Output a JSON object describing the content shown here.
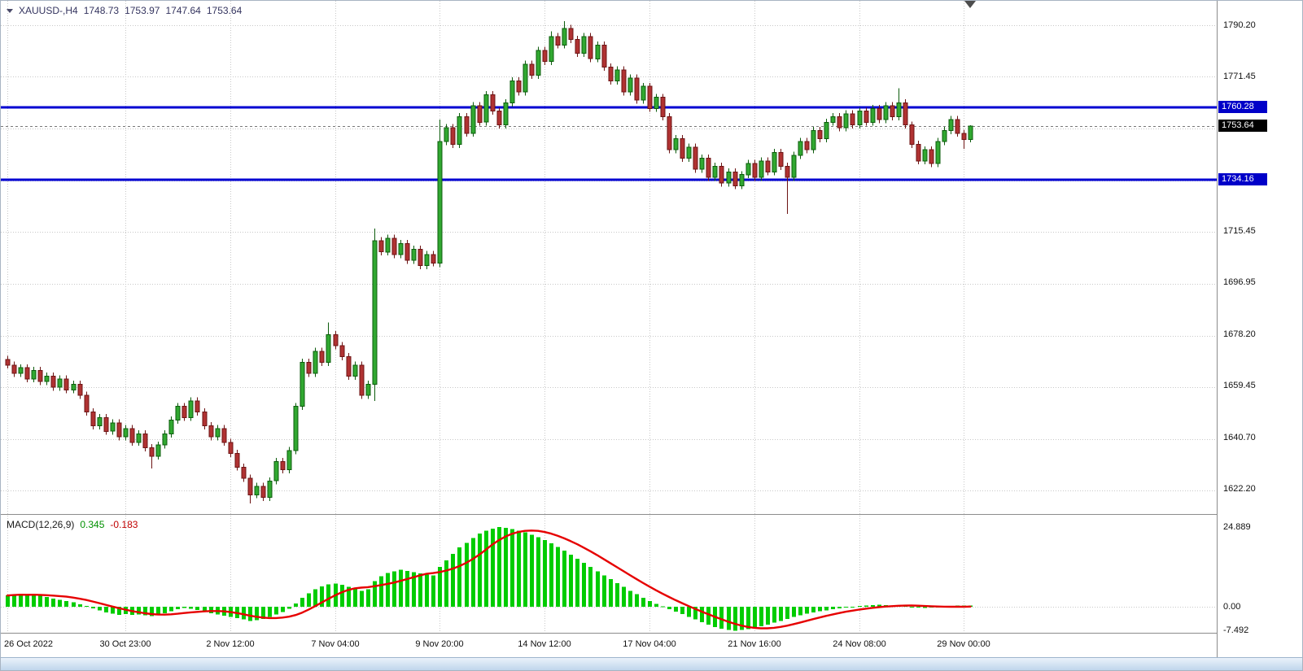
{
  "header": {
    "symbol_title": "XAUUSD-,H4",
    "open": "1748.73",
    "high": "1753.97",
    "low": "1747.64",
    "close": "1753.64"
  },
  "macd_header": {
    "label": "MACD(12,26,9)",
    "main_value": "0.345",
    "signal_value": "-0.183"
  },
  "price_axis": {
    "labels": [
      {
        "text": "1790.20",
        "value": 1790.2
      },
      {
        "text": "1771.45",
        "value": 1771.45
      },
      {
        "text": "1715.45",
        "value": 1715.45
      },
      {
        "text": "1696.95",
        "value": 1696.95
      },
      {
        "text": "1678.20",
        "value": 1678.2
      },
      {
        "text": "1659.45",
        "value": 1659.45
      },
      {
        "text": "1640.70",
        "value": 1640.7
      },
      {
        "text": "1622.20",
        "value": 1622.2
      }
    ],
    "badges": [
      {
        "text": "1760.28",
        "value": 1760.28,
        "kind": "level"
      },
      {
        "text": "1753.64",
        "value": 1753.64,
        "kind": "current"
      },
      {
        "text": "1734.16",
        "value": 1734.16,
        "kind": "level"
      }
    ]
  },
  "macd_axis_labels": [
    {
      "text": "24.889",
      "value": 24.889
    },
    {
      "text": "0.00",
      "value": 0
    },
    {
      "text": "-7.492",
      "value": -7.492
    }
  ],
  "time_axis_labels": [
    {
      "text": "26 Oct 2022",
      "bar": 0
    },
    {
      "text": "30 Oct 23:00",
      "bar": 18
    },
    {
      "text": "2 Nov 12:00",
      "bar": 34
    },
    {
      "text": "7 Nov 04:00",
      "bar": 50
    },
    {
      "text": "9 Nov 20:00",
      "bar": 66
    },
    {
      "text": "14 Nov 12:00",
      "bar": 82
    },
    {
      "text": "17 Nov 04:00",
      "bar": 98
    },
    {
      "text": "21 Nov 16:00",
      "bar": 114
    },
    {
      "text": "24 Nov 08:00",
      "bar": 130
    },
    {
      "text": "29 Nov 00:00",
      "bar": 146
    }
  ],
  "colors": {
    "level_line": "#0000d2",
    "bull_fill": "#31a831",
    "bull_stroke": "#0c5c0c",
    "bear_fill": "#b03232",
    "bear_stroke": "#6d1414",
    "histogram": "#00cc00",
    "signal": "#e60000",
    "grid": "#c8c8c8",
    "badge_level": "#0000c8",
    "badge_current": "#000000",
    "current_price_line": "#777777"
  },
  "chart_data": [
    {
      "type": "candlestick",
      "title": "XAUUSD- H4",
      "ohlc_readout": {
        "open": 1748.73,
        "high": 1753.97,
        "low": 1747.64,
        "close": 1753.64
      },
      "y_range": {
        "max": 1799,
        "min": 1613
      },
      "levels": [
        1760.28,
        1734.16
      ],
      "current_price": 1753.64,
      "candles": [
        [
          1669,
          1670.3,
          1665.7,
          1667
        ],
        [
          1667,
          1668.3,
          1662.7,
          1664
        ],
        [
          1664,
          1667.3,
          1662.7,
          1666
        ],
        [
          1666,
          1667.3,
          1660.7,
          1662
        ],
        [
          1662,
          1666.3,
          1660.7,
          1665
        ],
        [
          1665,
          1666.3,
          1659.7,
          1661
        ],
        [
          1661,
          1664.3,
          1659.7,
          1663
        ],
        [
          1663,
          1664.3,
          1657.7,
          1659
        ],
        [
          1659,
          1663.3,
          1657.7,
          1662
        ],
        [
          1662,
          1663.3,
          1656.7,
          1658
        ],
        [
          1658,
          1661.3,
          1656.7,
          1660
        ],
        [
          1660,
          1661.3,
          1654.7,
          1656
        ],
        [
          1656,
          1657.3,
          1648.7,
          1650
        ],
        [
          1650,
          1651.3,
          1643.7,
          1645
        ],
        [
          1645,
          1649.3,
          1643.7,
          1648
        ],
        [
          1648,
          1649.3,
          1641.7,
          1643
        ],
        [
          1643,
          1647.3,
          1641.7,
          1646
        ],
        [
          1646,
          1647.3,
          1639.7,
          1641
        ],
        [
          1641,
          1645.3,
          1639.7,
          1644
        ],
        [
          1644,
          1645.3,
          1637.7,
          1639
        ],
        [
          1639,
          1643.3,
          1637.7,
          1642
        ],
        [
          1642,
          1643.3,
          1635.7,
          1637
        ],
        [
          1637,
          1638.3,
          1629.5,
          1634
        ],
        [
          1634,
          1639.3,
          1632.7,
          1638
        ],
        [
          1638,
          1643.3,
          1636.7,
          1642
        ],
        [
          1642,
          1648.3,
          1640.7,
          1647
        ],
        [
          1647,
          1653.3,
          1645.7,
          1652
        ],
        [
          1652,
          1653.3,
          1646.7,
          1648
        ],
        [
          1648,
          1655.3,
          1646.7,
          1654
        ],
        [
          1654,
          1655.3,
          1648.7,
          1650
        ],
        [
          1650,
          1651.3,
          1643.7,
          1645
        ],
        [
          1645,
          1646.3,
          1639.7,
          1641
        ],
        [
          1641,
          1645.3,
          1639.7,
          1644
        ],
        [
          1644,
          1645.3,
          1637.7,
          1639
        ],
        [
          1639,
          1640.3,
          1633.7,
          1635
        ],
        [
          1635,
          1636.3,
          1628.7,
          1630
        ],
        [
          1630,
          1631.3,
          1624.7,
          1626
        ],
        [
          1626,
          1627.3,
          1616.8,
          1620
        ],
        [
          1620,
          1624.3,
          1618.7,
          1623
        ],
        [
          1623,
          1624.3,
          1617.7,
          1619
        ],
        [
          1619,
          1626.3,
          1617.7,
          1625
        ],
        [
          1625,
          1633.3,
          1623.7,
          1632
        ],
        [
          1632,
          1633.3,
          1627.7,
          1629
        ],
        [
          1629,
          1637.3,
          1627.7,
          1636
        ],
        [
          1636,
          1653.3,
          1634.7,
          1652
        ],
        [
          1652,
          1669.3,
          1650.7,
          1668
        ],
        [
          1668,
          1669.3,
          1662.7,
          1664
        ],
        [
          1664,
          1673.3,
          1662.7,
          1672
        ],
        [
          1672,
          1673.3,
          1666.7,
          1668
        ],
        [
          1668,
          1682.4,
          1666.7,
          1678
        ],
        [
          1678,
          1679.3,
          1672.7,
          1674
        ],
        [
          1674,
          1675.3,
          1668.7,
          1670
        ],
        [
          1670,
          1671.3,
          1661.7,
          1663
        ],
        [
          1663,
          1668.3,
          1661.7,
          1667
        ],
        [
          1667,
          1668.3,
          1654.7,
          1656
        ],
        [
          1656,
          1661.3,
          1654.7,
          1660
        ],
        [
          1660,
          1716.5,
          1654,
          1712
        ],
        [
          1712,
          1713.3,
          1706.7,
          1708
        ],
        [
          1708,
          1714.3,
          1706.7,
          1713
        ],
        [
          1713,
          1714.3,
          1705.7,
          1707
        ],
        [
          1707,
          1712.3,
          1705.7,
          1711
        ],
        [
          1711,
          1712.3,
          1703.7,
          1705
        ],
        [
          1705,
          1710.3,
          1703.7,
          1709
        ],
        [
          1709,
          1710.3,
          1701.7,
          1703
        ],
        [
          1703,
          1708.3,
          1701.7,
          1707
        ],
        [
          1707,
          1708.3,
          1702.7,
          1704
        ],
        [
          1704,
          1756,
          1702.5,
          1748
        ],
        [
          1748,
          1754.3,
          1746.7,
          1753
        ],
        [
          1753,
          1754.3,
          1745.7,
          1747
        ],
        [
          1747,
          1758.3,
          1745.7,
          1757
        ],
        [
          1757,
          1758.3,
          1749.7,
          1751
        ],
        [
          1751,
          1762.3,
          1749.7,
          1761
        ],
        [
          1761,
          1762.3,
          1753.7,
          1755
        ],
        [
          1755,
          1766.3,
          1753.7,
          1765
        ],
        [
          1765,
          1766.3,
          1757.7,
          1759
        ],
        [
          1759,
          1760.3,
          1752.7,
          1754
        ],
        [
          1754,
          1763.3,
          1752.7,
          1762
        ],
        [
          1762,
          1771.3,
          1760.7,
          1770
        ],
        [
          1770,
          1771.3,
          1764.7,
          1766
        ],
        [
          1766,
          1777.3,
          1764.7,
          1776
        ],
        [
          1776,
          1777.3,
          1770.7,
          1772
        ],
        [
          1772,
          1782.3,
          1770.7,
          1781
        ],
        [
          1781,
          1782.3,
          1775.7,
          1777
        ],
        [
          1777,
          1788,
          1775.7,
          1786
        ],
        [
          1786,
          1787.3,
          1781.7,
          1783
        ],
        [
          1783,
          1791.6,
          1781.7,
          1789
        ],
        [
          1789,
          1790.3,
          1783.7,
          1785
        ],
        [
          1785,
          1786.3,
          1778.7,
          1780
        ],
        [
          1780,
          1787.3,
          1778.7,
          1786
        ],
        [
          1786,
          1787.3,
          1776.7,
          1778
        ],
        [
          1778,
          1784.3,
          1776.7,
          1783
        ],
        [
          1783,
          1784.3,
          1773.7,
          1775
        ],
        [
          1775,
          1776.3,
          1768.7,
          1770
        ],
        [
          1770,
          1775.3,
          1768.7,
          1774
        ],
        [
          1774,
          1775.3,
          1764.7,
          1766
        ],
        [
          1766,
          1772.3,
          1764.7,
          1771
        ],
        [
          1771,
          1772.3,
          1761.7,
          1763
        ],
        [
          1763,
          1769.3,
          1761.7,
          1768
        ],
        [
          1768,
          1769.3,
          1758.7,
          1760
        ],
        [
          1760,
          1765.3,
          1758.7,
          1764
        ],
        [
          1764,
          1765.3,
          1755.7,
          1757
        ],
        [
          1757,
          1758.3,
          1743.7,
          1745
        ],
        [
          1745,
          1750.3,
          1743.7,
          1749
        ],
        [
          1749,
          1750.3,
          1740.7,
          1742
        ],
        [
          1742,
          1747.3,
          1740.7,
          1746
        ],
        [
          1746,
          1747.3,
          1736.7,
          1738
        ],
        [
          1738,
          1743.3,
          1736.7,
          1742
        ],
        [
          1742,
          1743.3,
          1733.7,
          1735
        ],
        [
          1735,
          1740.3,
          1733.7,
          1739
        ],
        [
          1739,
          1740.3,
          1731.7,
          1733
        ],
        [
          1733,
          1738.3,
          1731.7,
          1737
        ],
        [
          1737,
          1738.3,
          1730.7,
          1732
        ],
        [
          1732,
          1737.3,
          1730.7,
          1736
        ],
        [
          1736,
          1741.3,
          1734.7,
          1740
        ],
        [
          1740,
          1741.3,
          1733.7,
          1735
        ],
        [
          1735,
          1742.3,
          1733.7,
          1741
        ],
        [
          1741,
          1742.3,
          1735.7,
          1737
        ],
        [
          1737,
          1745.3,
          1735.7,
          1744
        ],
        [
          1744,
          1745.3,
          1737.7,
          1739
        ],
        [
          1739,
          1740.3,
          1721.8,
          1735
        ],
        [
          1735,
          1744.3,
          1733.7,
          1743
        ],
        [
          1743,
          1749.3,
          1741.7,
          1748
        ],
        [
          1748,
          1749.3,
          1743.7,
          1745
        ],
        [
          1745,
          1753.3,
          1743.7,
          1752
        ],
        [
          1752,
          1753.3,
          1747.7,
          1749
        ],
        [
          1749,
          1756.3,
          1747.7,
          1755
        ],
        [
          1755,
          1758.3,
          1753.7,
          1757
        ],
        [
          1757,
          1758.3,
          1751.7,
          1753
        ],
        [
          1753,
          1759.3,
          1751.7,
          1758
        ],
        [
          1758,
          1759.3,
          1752.7,
          1754
        ],
        [
          1754,
          1760.3,
          1752.7,
          1759
        ],
        [
          1759,
          1760.3,
          1753.7,
          1755
        ],
        [
          1755,
          1761.3,
          1753.7,
          1760
        ],
        [
          1760,
          1761.3,
          1754.7,
          1756
        ],
        [
          1756,
          1762.3,
          1754.7,
          1761
        ],
        [
          1761,
          1762.3,
          1755.7,
          1757
        ],
        [
          1757,
          1767.3,
          1755.7,
          1762
        ],
        [
          1762,
          1763.3,
          1752.7,
          1754
        ],
        [
          1754,
          1755.3,
          1745.7,
          1747
        ],
        [
          1747,
          1748.3,
          1739.7,
          1741
        ],
        [
          1741,
          1746.3,
          1739.7,
          1745
        ],
        [
          1745,
          1746.3,
          1738.7,
          1740
        ],
        [
          1740,
          1749.3,
          1738.7,
          1748
        ],
        [
          1748,
          1753.3,
          1746.7,
          1752
        ],
        [
          1752,
          1757.3,
          1750.7,
          1756
        ],
        [
          1756,
          1757.3,
          1749.7,
          1751
        ],
        [
          1751,
          1752.3,
          1745.4,
          1748.73
        ],
        [
          1748.73,
          1753.97,
          1747.64,
          1753.64
        ]
      ]
    },
    {
      "type": "macd",
      "title": "MACD(12,26,9)",
      "main_value": 0.345,
      "signal_value": -0.183,
      "signal_period": 9,
      "y_range": {
        "max": 28.45,
        "min": -8.13
      },
      "histogram": [
        3.5,
        3.8,
        4,
        3.6,
        3.9,
        3.4,
        3,
        2.6,
        2.2,
        1.8,
        1.4,
        0.8,
        0.2,
        -0.5,
        -1.2,
        -1.8,
        -2.2,
        -2.5,
        -2.3,
        -2.6,
        -2.4,
        -2.7,
        -2.9,
        -2.5,
        -2,
        -1.4,
        -0.8,
        -0.4,
        -0.6,
        -1,
        -1.5,
        -2,
        -2.4,
        -2.8,
        -3.2,
        -3.6,
        -4,
        -4.5,
        -4.2,
        -3.8,
        -3.2,
        -2.4,
        -1.6,
        -0.6,
        1,
        2.8,
        4.2,
        5.5,
        6.3,
        7,
        7.2,
        6.8,
        6.2,
        5.6,
        5,
        5.4,
        8,
        9.5,
        10.5,
        11,
        11.5,
        11.2,
        10.8,
        10.4,
        10,
        9.8,
        12.5,
        14.5,
        16.5,
        18.5,
        20,
        21.5,
        22.8,
        23.8,
        24.4,
        24.889,
        24.6,
        24.3,
        23.8,
        23.2,
        22.5,
        21.7,
        20.8,
        19.8,
        18.7,
        17.5,
        16.3,
        15,
        13.7,
        12.4,
        11.1,
        9.8,
        8.6,
        7.4,
        6.2,
        5,
        3.9,
        2.8,
        1.8,
        0.9,
        0.1,
        -0.7,
        -1.5,
        -2.3,
        -3.2,
        -4,
        -4.8,
        -5.6,
        -6.3,
        -6.9,
        -7.3,
        -7.45,
        -7.3,
        -7,
        -6.6,
        -6.1,
        -5.6,
        -5,
        -4.4,
        -3.8,
        -3.2,
        -2.7,
        -2.2,
        -1.8,
        -1.4,
        -1.1,
        -0.8,
        -0.5,
        -0.3,
        -0.1,
        0.2,
        0.4,
        0.5,
        0.6,
        0.5,
        0.4,
        0.5,
        0.3,
        0,
        -0.3,
        -0.4,
        -0.3,
        -0.1,
        0.1,
        0.3,
        0.4,
        0.35,
        0.345
      ]
    }
  ]
}
